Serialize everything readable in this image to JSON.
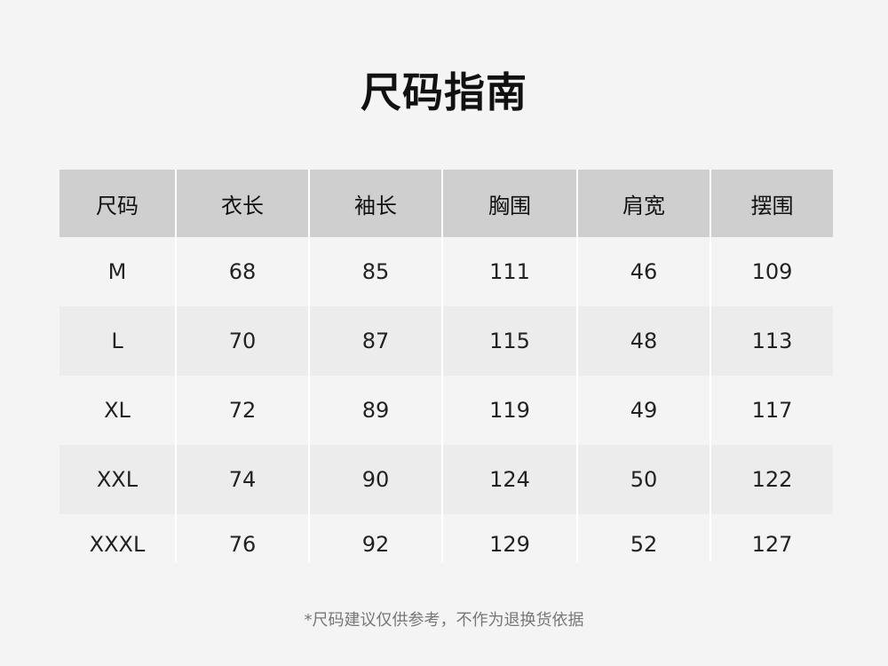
{
  "title": "尺码指南",
  "table": {
    "headers": [
      "尺码",
      "衣长",
      "袖长",
      "胸围",
      "肩宽",
      "摆围"
    ],
    "rows": [
      [
        "M",
        "68",
        "85",
        "111",
        "46",
        "109"
      ],
      [
        "L",
        "70",
        "87",
        "115",
        "48",
        "113"
      ],
      [
        "XL",
        "72",
        "89",
        "119",
        "49",
        "117"
      ],
      [
        "XXL",
        "74",
        "90",
        "124",
        "50",
        "122"
      ],
      [
        "XXXL",
        "76",
        "92",
        "129",
        "52",
        "127"
      ]
    ]
  },
  "note": "*尺码建议仅供参考，不作为退换货依据"
}
